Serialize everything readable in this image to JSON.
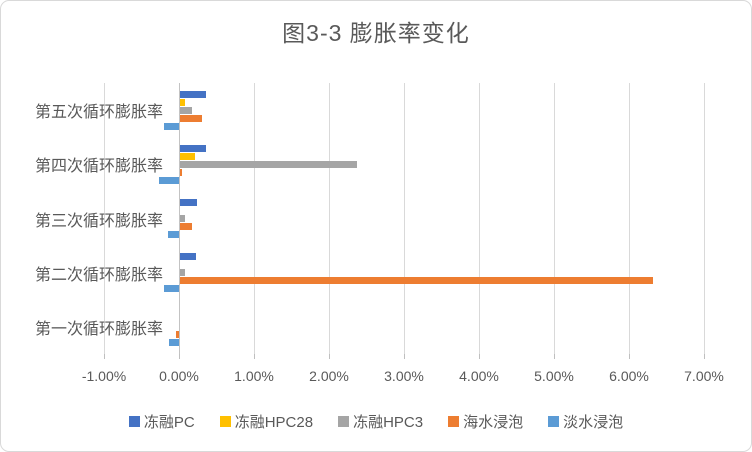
{
  "chart_data": {
    "type": "bar",
    "orientation": "horizontal",
    "title": "图3-3 膨胀率变化",
    "categories": [
      "第五次循环膨胀率",
      "第四次循环膨胀率",
      "第三次循环膨胀率",
      "第二次循环膨胀率",
      "第一次循环膨胀率"
    ],
    "series": [
      {
        "name": "冻融PC",
        "color": "#4472C4",
        "values": [
          0.35,
          0.35,
          0.23,
          0.21,
          0
        ]
      },
      {
        "name": "冻融HPC28",
        "color": "#FFC000",
        "values": [
          0.07,
          0.2,
          0,
          0,
          0
        ]
      },
      {
        "name": "冻融HPC3",
        "color": "#A5A5A5",
        "values": [
          0.16,
          2.36,
          0.07,
          0.07,
          0
        ]
      },
      {
        "name": "海水浸泡",
        "color": "#ED7D31",
        "values": [
          0.29,
          0.03,
          0.16,
          6.3,
          -0.04
        ]
      },
      {
        "name": "淡水浸泡",
        "color": "#5B9BD5",
        "values": [
          -0.2,
          -0.27,
          -0.15,
          -0.2,
          -0.14
        ]
      }
    ],
    "x_axis": {
      "min": -1,
      "max": 7,
      "step": 1,
      "unit": "%",
      "tick_labels": [
        "-1.00%",
        "0.00%",
        "1.00%",
        "2.00%",
        "3.00%",
        "4.00%",
        "5.00%",
        "6.00%",
        "7.00%"
      ]
    },
    "grid": true,
    "legend_position": "bottom",
    "colors": {
      "gridline": "#D9D9D9",
      "axis": "#C3C3C3",
      "text": "#595959",
      "border": "#D9D9D9"
    }
  }
}
